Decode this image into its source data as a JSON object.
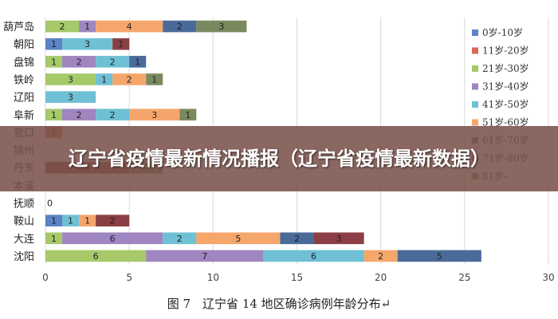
{
  "chart_data": {
    "type": "bar",
    "orientation": "horizontal",
    "stacked": true,
    "title": "",
    "xlabel": "",
    "ylabel": "",
    "xlim": [
      0,
      30
    ],
    "x_ticks": [
      0,
      5,
      10,
      15,
      20,
      25,
      30
    ],
    "grid": true,
    "legend_position": "right",
    "categories": [
      "葫芦岛",
      "朝阳",
      "盘锦",
      "铁岭",
      "辽阳",
      "阜新",
      "营口",
      "锦州",
      "丹东",
      "本溪",
      "抚顺",
      "鞍山",
      "大连",
      "沈阳"
    ],
    "series": [
      {
        "name": "0岁-10岁",
        "color": "#5b83c5",
        "values": [
          0,
          1,
          0,
          0,
          0,
          0,
          0,
          0,
          0,
          0,
          0,
          1,
          0,
          0
        ]
      },
      {
        "name": "11岁-20岁",
        "color": "#d9695d",
        "values": [
          0,
          0,
          0,
          0,
          0,
          0,
          1,
          0,
          0,
          0,
          0,
          0,
          0,
          0
        ]
      },
      {
        "name": "21岁-30岁",
        "color": "#a6c96a",
        "values": [
          2,
          0,
          1,
          3,
          0,
          1,
          0,
          0,
          0,
          0,
          0,
          0,
          1,
          6
        ]
      },
      {
        "name": "31岁-40岁",
        "color": "#9f86c0",
        "values": [
          1,
          0,
          2,
          0,
          0,
          2,
          0,
          0,
          0,
          0,
          0,
          0,
          6,
          7
        ]
      },
      {
        "name": "41岁-50岁",
        "color": "#6fc0d4",
        "values": [
          0,
          3,
          2,
          1,
          3,
          2,
          0,
          0,
          0,
          0,
          0,
          1,
          2,
          6
        ]
      },
      {
        "name": "51岁-60岁",
        "color": "#f5a66b",
        "values": [
          4,
          0,
          0,
          2,
          0,
          3,
          0,
          0,
          0,
          0,
          0,
          1,
          5,
          2
        ]
      },
      {
        "name": "61岁-70岁",
        "color": "#4a6b9a",
        "values": [
          2,
          0,
          1,
          0,
          0,
          0,
          0,
          0,
          0,
          0,
          0,
          0,
          2,
          5
        ]
      },
      {
        "name": "71岁-80岁",
        "color": "#8b3f44",
        "values": [
          0,
          1,
          0,
          0,
          0,
          0,
          0,
          0,
          5,
          0,
          0,
          2,
          3,
          0
        ]
      },
      {
        "name": "81岁-",
        "color": "#7a8a5e",
        "values": [
          3,
          0,
          0,
          1,
          0,
          1,
          0,
          0,
          2,
          0,
          0,
          0,
          0,
          0
        ]
      }
    ],
    "value_labels_on_bars": true,
    "zero_labels": [
      {
        "category": "抚顺",
        "text": "0"
      }
    ]
  },
  "caption": "图 7　辽宁省 14 地区确诊病例年龄分布↵",
  "overlay_title": "辽宁省疫情最新情况播报（辽宁省疫情最新数据）"
}
